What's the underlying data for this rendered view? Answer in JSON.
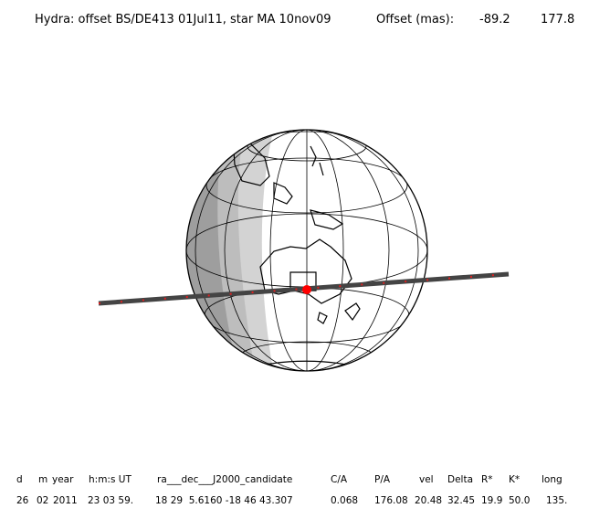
{
  "header": {
    "title": "Hydra: offset BS/DE413 01Jul11, star MA 10nov09",
    "offset_label": "Offset (mas):",
    "offset_x": "-89.2",
    "offset_y": "177.8"
  },
  "table": {
    "columns": [
      "d",
      "m",
      "year",
      "h:m:s UT",
      "ra___dec___J2000_candidate",
      "C/A",
      "P/A",
      "vel",
      "Delta",
      "R*",
      "K*",
      "long"
    ],
    "rows": [
      [
        "26",
        "02",
        "2011",
        "23 03 59.",
        "18 29  5.6160 -18 46 43.307",
        "0.068",
        "176.08",
        "20.48",
        "32.45",
        "19.9",
        "50.0",
        "135."
      ]
    ]
  }
}
